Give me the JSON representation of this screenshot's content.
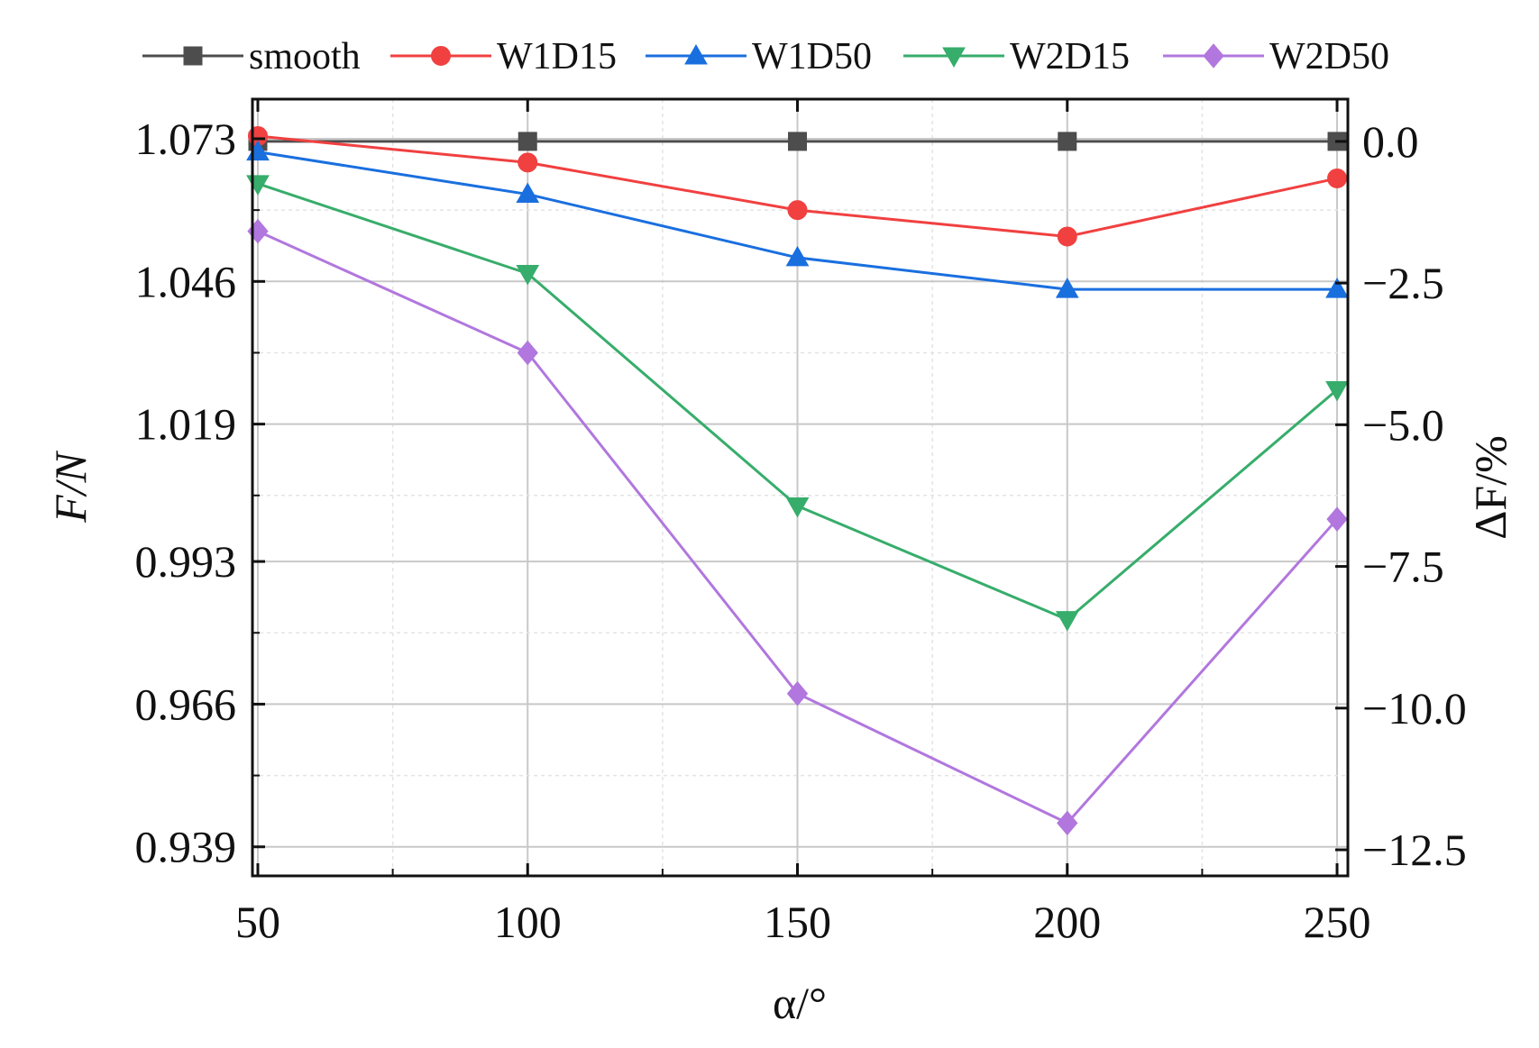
{
  "chart_data": {
    "type": "line",
    "x": [
      50,
      100,
      150,
      200,
      250
    ],
    "series": [
      {
        "name": "smooth",
        "color": "#4d4d4d",
        "marker": "square",
        "values": [
          1.0725,
          1.0725,
          1.0725,
          1.0725,
          1.0725
        ]
      },
      {
        "name": "W1D15",
        "color": "#f14040",
        "marker": "circle",
        "values": [
          1.0735,
          1.0685,
          1.0595,
          1.0545,
          1.0655
        ]
      },
      {
        "name": "W1D50",
        "color": "#1a6fdf",
        "marker": "triangle-up",
        "values": [
          1.0705,
          1.0625,
          1.0505,
          1.0445,
          1.0445
        ]
      },
      {
        "name": "W2D15",
        "color": "#37ad6b",
        "marker": "triangle-down",
        "values": [
          1.0645,
          1.0475,
          1.0035,
          0.982,
          1.0255
        ]
      },
      {
        "name": "W2D50",
        "color": "#b177de",
        "marker": "diamond",
        "values": [
          1.0555,
          1.0325,
          0.968,
          0.9435,
          1.001
        ]
      }
    ],
    "xlabel": "α/°",
    "ylabel": "F/N",
    "y2label": "ΔF/%",
    "xlim": [
      49,
      252
    ],
    "ylim": [
      0.9335,
      1.0805
    ],
    "xticks": [
      50,
      100,
      150,
      200,
      250
    ],
    "xtick_labels": [
      "50",
      "100",
      "150",
      "200",
      "250"
    ],
    "yticks": [
      1.073,
      1.046,
      1.019,
      0.993,
      0.966,
      0.939
    ],
    "ytick_labels": [
      "1.073",
      "1.046",
      "1.019",
      "0.993",
      "0.966",
      "0.939"
    ],
    "y2ticks": [
      0.0,
      -2.5,
      -5.0,
      -7.5,
      -10.0,
      -12.5
    ],
    "y2tick_labels": [
      "0.0",
      "−2.5",
      "−5.0",
      "−7.5",
      "−10.0",
      "−12.5"
    ],
    "y2_reference": 1.0725,
    "grid": true,
    "legend_position": "top"
  }
}
